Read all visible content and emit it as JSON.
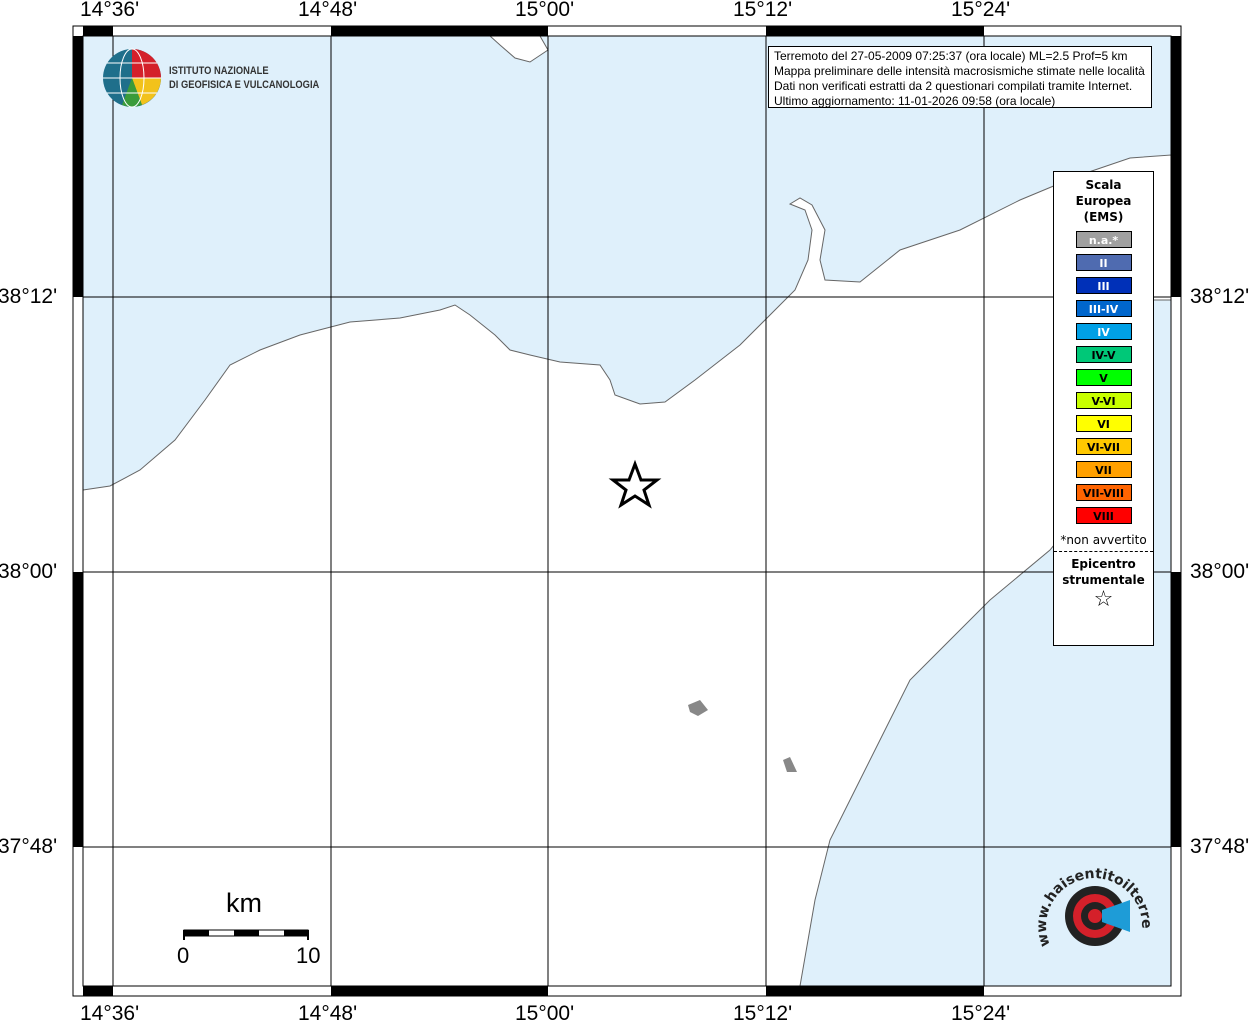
{
  "info": {
    "lines": [
      "Terremoto del 27-05-2009 07:25:37 (ora locale) ML=2.5 Prof=5 km",
      "Mappa preliminare delle intensità macrosismiche stimate nelle località",
      "Dati non verificati estratti da 2 questionari compilati tramite Internet.",
      "Ultimo aggiornamento: 11-01-2026 09:58 (ora locale)"
    ]
  },
  "logo": {
    "line1": "ISTITUTO NAZIONALE",
    "line2": "DI GEOFISICA E VULCANOLOGIA"
  },
  "axes": {
    "lon": [
      "14°36'",
      "14°48'",
      "15°00'",
      "15°12'",
      "15°24'"
    ],
    "lat": [
      "38°12'",
      "38°00'",
      "37°48'"
    ]
  },
  "legend": {
    "title": [
      "Scala",
      "Europea",
      "(EMS)"
    ],
    "items": [
      {
        "label": "n.a.*",
        "color": "#a0a0a0",
        "text": "#fff"
      },
      {
        "label": "II",
        "color": "#4f6bb0",
        "text": "#fff"
      },
      {
        "label": "III",
        "color": "#0030b8",
        "text": "#fff"
      },
      {
        "label": "III-IV",
        "color": "#0066cc",
        "text": "#fff"
      },
      {
        "label": "IV",
        "color": "#00a0e6",
        "text": "#fff"
      },
      {
        "label": "IV-V",
        "color": "#00c878",
        "text": "#000"
      },
      {
        "label": "V",
        "color": "#00ff00",
        "text": "#000"
      },
      {
        "label": "V-VI",
        "color": "#c8ff00",
        "text": "#000"
      },
      {
        "label": "VI",
        "color": "#ffff00",
        "text": "#000"
      },
      {
        "label": "VI-VII",
        "color": "#ffc800",
        "text": "#000"
      },
      {
        "label": "VII",
        "color": "#ffa000",
        "text": "#000"
      },
      {
        "label": "VII-VIII",
        "color": "#ff6400",
        "text": "#000"
      },
      {
        "label": "VIII",
        "color": "#ff0000",
        "text": "#000"
      }
    ],
    "note": "*non avvertito",
    "epicentre": [
      "Epicentro",
      "strumentale"
    ]
  },
  "scale": {
    "unit": "km",
    "min": "0",
    "max": "10"
  },
  "watermark": "www.haisentitoilterremoto.it",
  "colors": {
    "sea": "#dff0fb",
    "land": "#ffffff"
  }
}
